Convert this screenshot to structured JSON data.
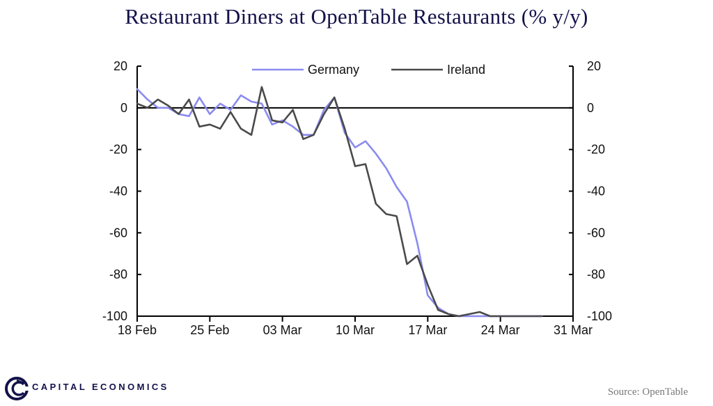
{
  "title": "Restaurant Diners at OpenTable Restaurants (% y/y)",
  "brand": {
    "name": "CAPITAL ECONOMICS"
  },
  "source": "Source: OpenTable",
  "colors": {
    "germany": "#8b8bf0",
    "ireland": "#4a4a4a",
    "axis": "#000000",
    "title": "#13124a"
  },
  "chart_data": {
    "type": "line",
    "title": "Restaurant Diners at OpenTable Restaurants (% y/y)",
    "xlabel": "",
    "ylabel": "",
    "ylim": [
      -100,
      20
    ],
    "y_ticks": [
      20,
      0,
      -20,
      -40,
      -60,
      -80,
      -100
    ],
    "y2_ticks": [
      20,
      0,
      -20,
      -40,
      -60,
      -80,
      -100
    ],
    "x_start": 0,
    "x_end": 42,
    "x_ticks": [
      {
        "x": 0,
        "label": "18 Feb"
      },
      {
        "x": 7,
        "label": "25 Feb"
      },
      {
        "x": 14,
        "label": "03 Mar"
      },
      {
        "x": 21,
        "label": "10 Mar"
      },
      {
        "x": 28,
        "label": "17 Mar"
      },
      {
        "x": 35,
        "label": "24 Mar"
      },
      {
        "x": 42,
        "label": "31 Mar"
      }
    ],
    "zero_line": true,
    "legend_position": "top-center",
    "series": [
      {
        "name": "Germany",
        "values": [
          9,
          4,
          0,
          0,
          -3,
          -4,
          5,
          -3,
          2,
          -1,
          6,
          3,
          2,
          -8,
          -6,
          -9,
          -13,
          -13,
          -1,
          5,
          -12,
          -19,
          -16,
          -22,
          -29,
          -38,
          -45,
          -65,
          -90,
          -96,
          -99,
          -100,
          -100,
          -100,
          -100,
          -100,
          -100,
          -100,
          -100,
          -100
        ]
      },
      {
        "name": "Ireland",
        "values": [
          2,
          0,
          4,
          1,
          -3,
          4,
          -9,
          -8,
          -10,
          -2,
          -10,
          -13,
          10,
          -6,
          -7,
          -1,
          -15,
          -13,
          -3,
          5,
          -10,
          -28,
          -27,
          -46,
          -51,
          -52,
          -75,
          -71,
          -85,
          -97,
          -99,
          -100,
          -99,
          -98,
          -100,
          -100,
          -100,
          -100,
          -100,
          -100
        ]
      }
    ]
  }
}
